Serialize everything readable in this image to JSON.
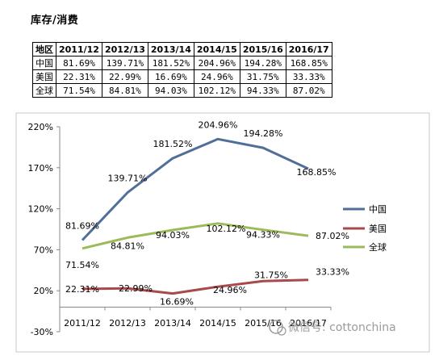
{
  "page": {
    "title": "库存/消费",
    "watermark": "微信号: cottonchina"
  },
  "table": {
    "header": [
      "地区",
      "2011/12",
      "2012/13",
      "2013/14",
      "2014/15",
      "2015/16",
      "2016/17"
    ],
    "rows": [
      {
        "region": "中国",
        "cells": [
          "81.69%",
          "139.71%",
          "181.52%",
          "204.96%",
          "194.28%",
          "168.85%"
        ]
      },
      {
        "region": "美国",
        "cells": [
          "22.31%",
          "22.99%",
          "16.69%",
          "24.96%",
          "31.75%",
          "33.33%"
        ]
      },
      {
        "region": "全球",
        "cells": [
          "71.54%",
          "84.81%",
          "94.03%",
          "102.12%",
          "94.33%",
          "87.02%"
        ]
      }
    ]
  },
  "chart_data": {
    "type": "line",
    "title": "",
    "xlabel": "",
    "ylabel": "",
    "categories": [
      "2011/12",
      "2012/13",
      "2013/14",
      "2014/15",
      "2015/16",
      "2016/17"
    ],
    "ylim": [
      -30,
      220
    ],
    "yticks": [
      -30,
      20,
      70,
      120,
      170,
      220
    ],
    "ytick_labels": [
      "-30%",
      "20%",
      "70%",
      "120%",
      "170%",
      "220%"
    ],
    "grid": false,
    "legend": "right",
    "series": [
      {
        "name": "中国",
        "color": "#4f6f99",
        "values": [
          81.69,
          139.71,
          181.52,
          204.96,
          194.28,
          168.85
        ],
        "labels": [
          "81.69%",
          "139.71%",
          "181.52%",
          "204.96%",
          "194.28%",
          "168.85%"
        ]
      },
      {
        "name": "美国",
        "color": "#a9494b",
        "values": [
          22.31,
          22.99,
          16.69,
          24.96,
          31.75,
          33.33
        ],
        "labels": [
          "22.31%",
          "22.99%",
          "16.69%",
          "24.96%",
          "31.75%",
          "33.33%"
        ]
      },
      {
        "name": "全球",
        "color": "#9bbb59",
        "values": [
          71.54,
          84.81,
          94.03,
          102.12,
          94.33,
          87.02
        ],
        "labels": [
          "71.54%",
          "84.81%",
          "94.03%",
          "102.12%",
          "94.33%",
          "87.02%"
        ]
      }
    ]
  }
}
